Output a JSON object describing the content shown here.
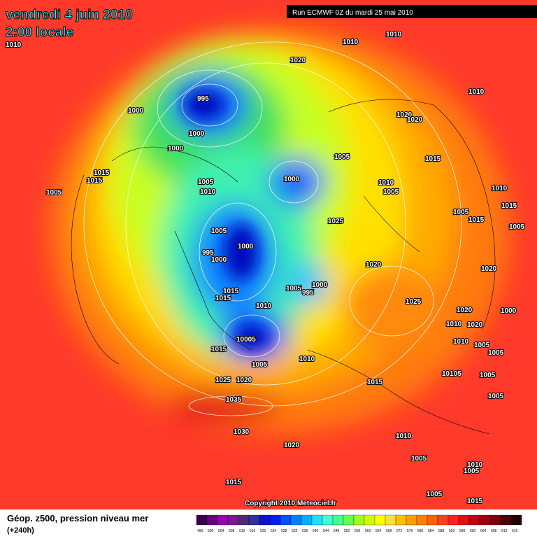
{
  "header": {
    "date": "vendredi 4 juin 2010",
    "time": "2:00 locale",
    "run": "Run ECMWF 0Z du mardi 25 mai 2010"
  },
  "copyright": "Copyright 2010 Meteociel.fr",
  "footer": {
    "label": "Géop. z500, pression niveau mer",
    "lead": "(+240h)"
  },
  "colorbar": {
    "ticks": [
      496,
      500,
      504,
      508,
      512,
      516,
      520,
      524,
      528,
      532,
      536,
      540,
      544,
      548,
      552,
      556,
      560,
      564,
      568,
      572,
      576,
      580,
      584,
      588,
      592,
      596,
      600,
      604,
      608,
      612,
      616
    ],
    "colors": [
      "#3a0050",
      "#6a0080",
      "#9a00b0",
      "#7a1890",
      "#502878",
      "#3030a0",
      "#1010d0",
      "#0020f0",
      "#0050ff",
      "#0080ff",
      "#00b0ff",
      "#20e0ff",
      "#40ffd0",
      "#40ff90",
      "#60ff50",
      "#a0ff20",
      "#d0ff00",
      "#ffff00",
      "#ffe040",
      "#ffc000",
      "#ffa000",
      "#ff8000",
      "#ff6000",
      "#ff4020",
      "#ff2020",
      "#e01010",
      "#c00010",
      "#a00010",
      "#800010",
      "#500008",
      "#200000"
    ]
  },
  "isobar_labels": [
    "1010",
    "1010",
    "1010",
    "1020",
    "995",
    "1000",
    "1000",
    "1000",
    "1010",
    "1020",
    "1020",
    "1005",
    "1015",
    "1015",
    "1015",
    "1005",
    "1000",
    "1005",
    "1010",
    "1010",
    "1005",
    "1010",
    "1015",
    "1005",
    "1015",
    "1005",
    "1025",
    "1005",
    "1000",
    "995",
    "1000",
    "1020",
    "1020",
    "1000",
    "1005",
    "995",
    "1015",
    "1015",
    "1025",
    "1010",
    "1020",
    "1000",
    "1010",
    "1020",
    "10005",
    "1010",
    "1005",
    "1015",
    "1005",
    "1010",
    "1005",
    "10105",
    "1005",
    "1025",
    "1020",
    "1015",
    "1035",
    "1005",
    "1030",
    "1010",
    "1020",
    "1005",
    "1010",
    "1005",
    "1015",
    "1005",
    "1015"
  ]
}
